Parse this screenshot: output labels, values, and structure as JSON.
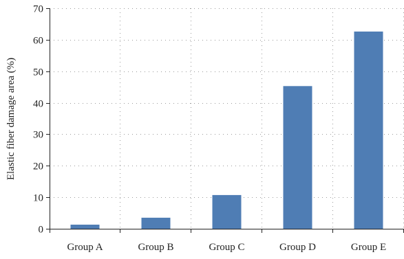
{
  "chart_data": {
    "type": "bar",
    "categories": [
      "Group A",
      "Group B",
      "Group C",
      "Group D",
      "Group E"
    ],
    "values": [
      1.3,
      3.5,
      10.7,
      45.3,
      62.6
    ],
    "title": "",
    "xlabel": "",
    "ylabel": "Elastic fiber damage area (%)",
    "ylim": [
      0,
      70
    ],
    "yticks": [
      0,
      10,
      20,
      30,
      40,
      50,
      60,
      70
    ],
    "ytick_labels": [
      "0",
      "10",
      "20",
      "30",
      "40",
      "50",
      "60",
      "70"
    ],
    "grid": true,
    "bar_color": "#4f7db4"
  }
}
